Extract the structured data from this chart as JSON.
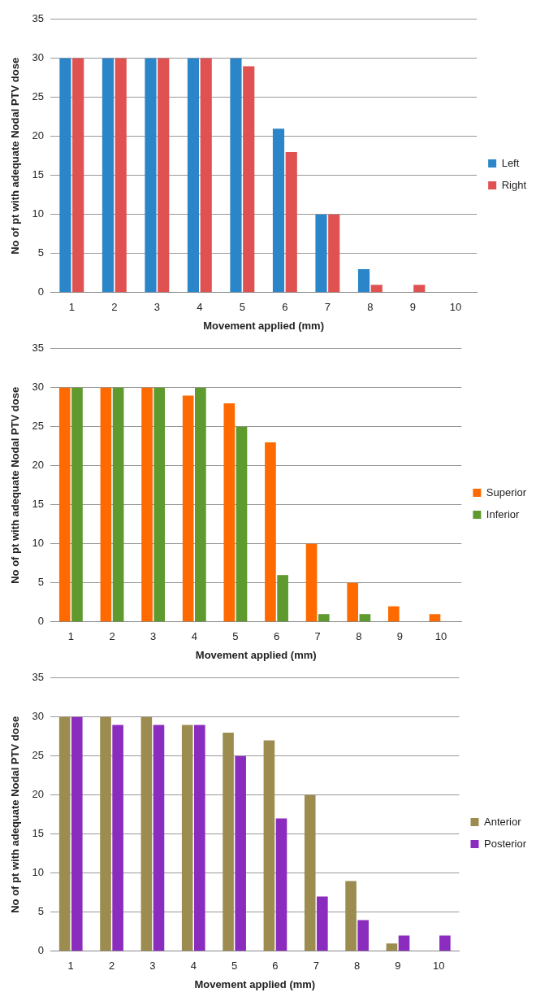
{
  "chart_data": [
    {
      "type": "bar",
      "xlabel": "Movement applied (mm)",
      "ylabel": "No of pt with adequate Nodal PTV dose",
      "categories": [
        "1",
        "2",
        "3",
        "4",
        "5",
        "6",
        "7",
        "8",
        "9",
        "10"
      ],
      "series": [
        {
          "name": "Left",
          "color": "#2a86c8",
          "values": [
            30,
            30,
            30,
            30,
            30,
            21,
            10,
            3,
            0,
            0
          ]
        },
        {
          "name": "Right",
          "color": "#e05252",
          "values": [
            30,
            30,
            30,
            30,
            29,
            18,
            10,
            1,
            1,
            0
          ]
        }
      ],
      "ylim": [
        0,
        35
      ],
      "yticks": [
        0,
        5,
        10,
        15,
        20,
        25,
        30,
        35
      ],
      "grid": "y",
      "legend": "right"
    },
    {
      "type": "bar",
      "xlabel": "Movement applied (mm)",
      "ylabel": "No of pt with adequate Nodal PTV dose",
      "categories": [
        "1",
        "2",
        "3",
        "4",
        "5",
        "6",
        "7",
        "8",
        "9",
        "10"
      ],
      "series": [
        {
          "name": "Superior",
          "color": "#ff6a00",
          "values": [
            30,
            30,
            30,
            29,
            28,
            23,
            10,
            5,
            2,
            1
          ]
        },
        {
          "name": "Inferior",
          "color": "#5e9a2e",
          "values": [
            30,
            30,
            30,
            30,
            25,
            6,
            1,
            1,
            0,
            0
          ]
        }
      ],
      "ylim": [
        0,
        35
      ],
      "yticks": [
        0,
        5,
        10,
        15,
        20,
        25,
        30,
        35
      ],
      "grid": "y",
      "legend": "right"
    },
    {
      "type": "bar",
      "xlabel": "Movement applied (mm)",
      "ylabel": "No of pt with adequate Nodal PTV dose",
      "categories": [
        "1",
        "2",
        "3",
        "4",
        "5",
        "6",
        "7",
        "8",
        "9",
        "10"
      ],
      "series": [
        {
          "name": "Anterior",
          "color": "#9c8c50",
          "values": [
            30,
            30,
            30,
            29,
            28,
            27,
            20,
            9,
            1,
            0
          ]
        },
        {
          "name": "Posterior",
          "color": "#8a2cbe",
          "values": [
            30,
            29,
            29,
            29,
            25,
            17,
            7,
            4,
            2,
            2
          ]
        }
      ],
      "ylim": [
        0,
        35
      ],
      "yticks": [
        0,
        5,
        10,
        15,
        20,
        25,
        30,
        35
      ],
      "grid": "y",
      "legend": "right"
    }
  ]
}
